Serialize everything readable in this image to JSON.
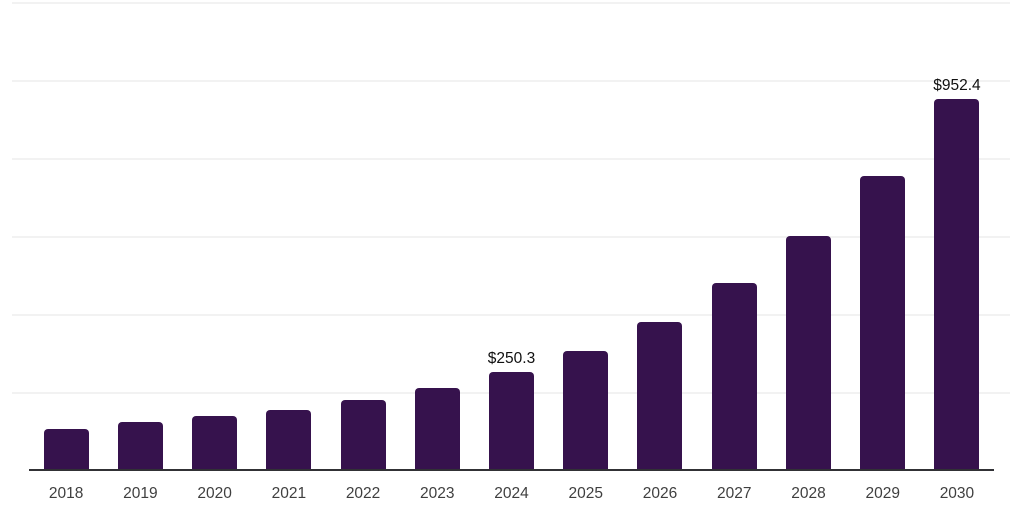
{
  "chart_data": {
    "type": "bar",
    "title": "",
    "xlabel": "",
    "ylabel": "",
    "categories": [
      "2018",
      "2019",
      "2020",
      "2021",
      "2022",
      "2023",
      "2024",
      "2025",
      "2026",
      "2027",
      "2028",
      "2029",
      "2030"
    ],
    "values": [
      105,
      122,
      138,
      155,
      179,
      211,
      250.3,
      304,
      379,
      479,
      601,
      754,
      952.4
    ],
    "bar_labels": [
      "",
      "",
      "",
      "",
      "",
      "",
      "$250.3",
      "",
      "",
      "",
      "",
      "",
      "$952.4"
    ],
    "ylim": [
      0,
      1200
    ],
    "gridline_values": [
      200,
      400,
      600,
      800,
      1000,
      1200
    ],
    "grid": true,
    "legend": false,
    "colors": {
      "bar": "#36124d",
      "axis_line": "#313135",
      "gridline": "#f2f2f2",
      "tick_label": "#3f3f3f",
      "value_label": "#101010",
      "background": "#ffffff"
    }
  }
}
